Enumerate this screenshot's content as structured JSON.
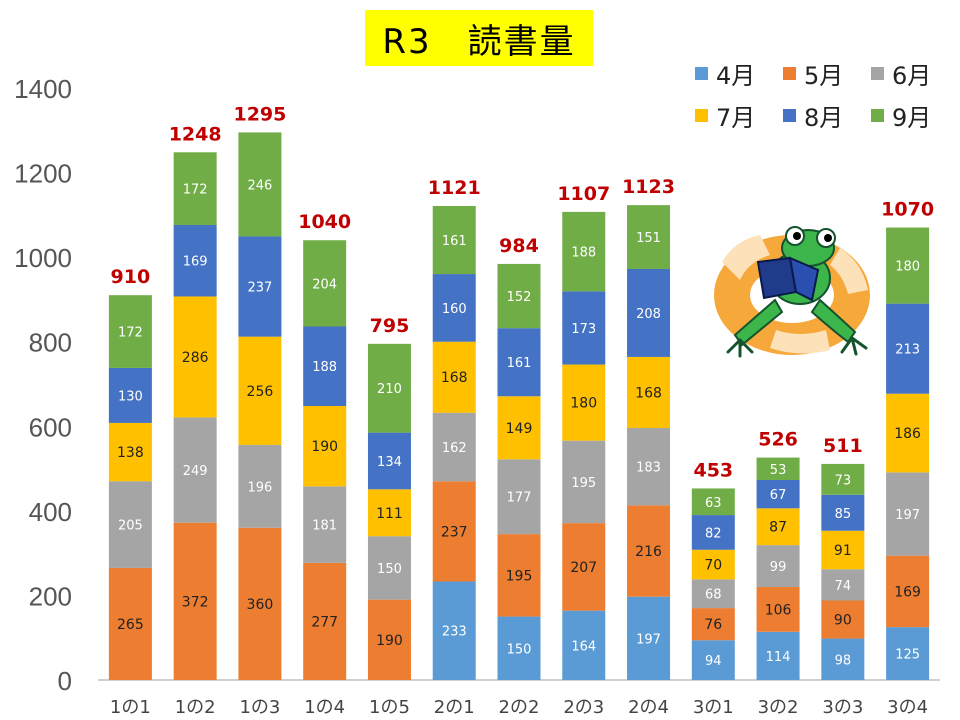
{
  "chart_data": {
    "type": "bar",
    "stacked": true,
    "title": "R3　読書量",
    "categories": [
      "1の1",
      "1の2",
      "1の3",
      "1の4",
      "1の5",
      "2の1",
      "2の2",
      "2の3",
      "2の4",
      "3の1",
      "3の2",
      "3の3",
      "3の4"
    ],
    "series": [
      {
        "name": "4月",
        "color": "#5b9bd5",
        "values": [
          0,
          0,
          0,
          0,
          0,
          233,
          150,
          164,
          197,
          94,
          114,
          98,
          125
        ]
      },
      {
        "name": "5月",
        "color": "#ed7d31",
        "values": [
          265,
          372,
          360,
          277,
          190,
          237,
          195,
          207,
          216,
          76,
          106,
          90,
          169
        ]
      },
      {
        "name": "6月",
        "color": "#a5a5a5",
        "values": [
          205,
          249,
          196,
          181,
          150,
          162,
          177,
          195,
          183,
          68,
          99,
          74,
          197
        ]
      },
      {
        "name": "7月",
        "color": "#ffc000",
        "values": [
          138,
          286,
          256,
          190,
          111,
          168,
          149,
          180,
          168,
          70,
          87,
          91,
          186
        ]
      },
      {
        "name": "8月",
        "color": "#4472c4",
        "values": [
          130,
          169,
          237,
          188,
          134,
          160,
          161,
          173,
          208,
          82,
          67,
          85,
          213
        ]
      },
      {
        "name": "9月",
        "color": "#70ad47",
        "values": [
          172,
          172,
          246,
          204,
          210,
          161,
          152,
          188,
          151,
          63,
          53,
          73,
          180
        ]
      }
    ],
    "totals": [
      910,
      1248,
      1295,
      1040,
      795,
      1121,
      984,
      1107,
      1123,
      453,
      526,
      511,
      1070
    ],
    "yticks": [
      0,
      200,
      400,
      600,
      800,
      1000,
      1200,
      1400
    ],
    "ylim": [
      0,
      1400
    ],
    "total_label_color": "#c00000",
    "grid": false,
    "legend_position": "top-right"
  }
}
